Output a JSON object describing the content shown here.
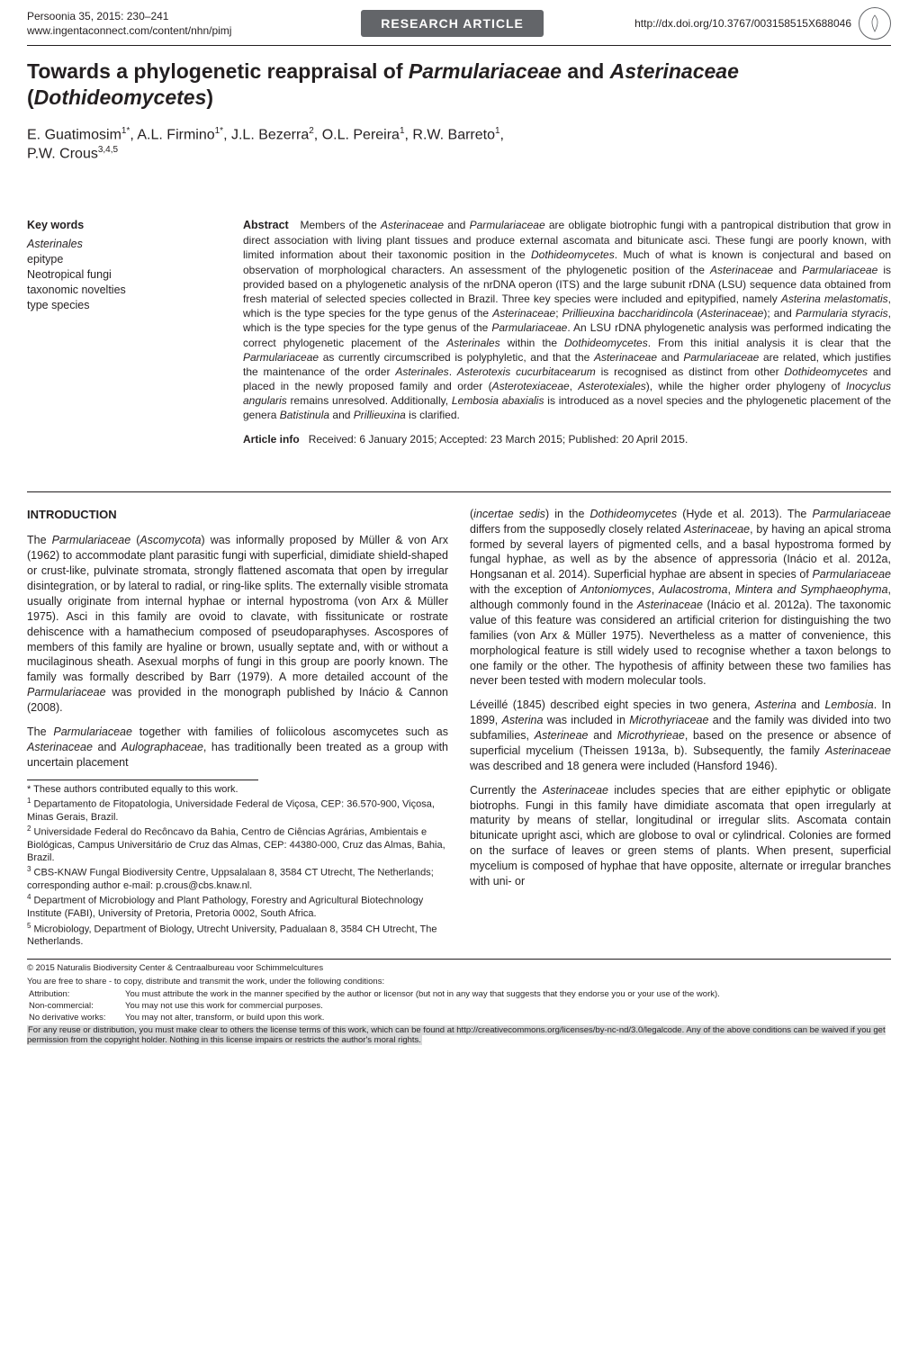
{
  "header": {
    "journal_line1": "Persoonia 35, 2015: 230–241",
    "journal_url": "www.ingentaconnect.com/content/nhn/pimj",
    "badge": "RESEARCH ARTICLE",
    "doi": "http://dx.doi.org/10.3767/003158515X688046"
  },
  "title_html": "Towards a phylogenetic reappraisal of <i>Parmulariaceae</i> and <i>Asterinaceae</i> (<i>Dothideomycetes</i>)",
  "authors_html": "E. Guatimosim<sup>1*</sup>, A.L. Firmino<sup>1*</sup>, J.L. Bezerra<sup>2</sup>, O.L. Pereira<sup>1</sup>, R.W. Barreto<sup>1</sup>,<br>P.W. Crous<sup>3,4,5</sup>",
  "keywords": {
    "heading": "Key words",
    "items": [
      {
        "text": "Asterinales",
        "italic": true
      },
      {
        "text": "epitype",
        "italic": false
      },
      {
        "text": "Neotropical fungi",
        "italic": false
      },
      {
        "text": "taxonomic novelties",
        "italic": false
      },
      {
        "text": "type species",
        "italic": false
      }
    ]
  },
  "abstract": {
    "heading": "Abstract",
    "text_html": "Members of the <i>Asterinaceae</i> and <i>Parmulariaceae</i> are obligate biotrophic fungi with a pantropical distribution that grow in direct association with living plant tissues and produce external ascomata and bitunicate asci. These fungi are poorly known, with limited information about their taxonomic position in the <i>Dothideomycetes</i>. Much of what is known is conjectural and based on observation of morphological characters. An assessment of the phylogenetic position of the <i>Asterinaceae</i> and <i>Parmulariaceae</i> is provided based on a phylogenetic analysis of the nrDNA operon (ITS) and the large subunit rDNA (LSU) sequence data obtained from fresh material of selected species collected in Brazil. Three key species were included and epitypified, namely <i>Asterina melastomatis</i>, which is the type species for the type genus of the <i>Asterinaceae</i>; <i>Prillieuxina baccharidincola</i> (<i>Asterinaceae</i>); and <i>Parmularia styracis</i>, which is the type species for the type genus of the <i>Parmulariaceae</i>. An LSU rDNA phylogenetic analysis was performed indicating the correct phylogenetic placement of the <i>Asterinales</i> within the <i>Dothideomycetes</i>. From this initial analysis it is clear that the <i>Parmulariaceae</i> as currently circumscribed is polyphyletic, and that the <i>Asterinaceae</i> and <i>Parmulariaceae</i> are related, which justifies the maintenance of the order <i>Asterinales</i>. <i>Asterotexis cucurbitacearum</i> is recognised as distinct from other <i>Dothideomycetes</i> and placed in the newly proposed family and order (<i>Asterotexiaceae</i>, <i>Asterotexiales</i>), while the higher order phylogeny of <i>Inocyclus angularis</i> remains unresolved. Additionally, <i>Lembosia abaxialis</i> is introduced as a novel species and the phylogenetic placement of the genera <i>Batistinula</i> and <i>Prillieuxina</i> is clarified."
  },
  "article_info": {
    "label": "Article info",
    "text": "Received: 6 January 2015; Accepted: 23 March 2015; Published: 20 April 2015."
  },
  "introduction_heading": "INTRODUCTION",
  "left_paragraphs": [
    "The <i>Parmulariaceae</i> (<i>Ascomycota</i>) was informally proposed by Müller & von Arx (1962) to accommodate plant parasitic fungi with superficial, dimidiate shield-shaped or crust-like, pulvinate stromata, strongly flattened ascomata that open by irregular disintegration, or by lateral to radial, or ring-like splits. The externally visible stromata usually originate from internal hyphae or internal hypostroma (von Arx & Müller 1975). Asci in this family are ovoid to clavate, with fissitunicate or rostrate dehiscence with a hamathecium composed of pseudoparaphyses. Ascospores of members of this family are hyaline or brown, usually septate and, with or without a mucilaginous sheath. Asexual morphs of fungi in this group are poorly known. The family was formally described by Barr (1979). A more detailed account of the <i>Parmulariaceae</i> was provided in the monograph published by Inácio & Cannon (2008).",
    "The <i>Parmulariaceae</i> together with families of foliicolous ascomycetes such as <i>Asterinaceae</i> and <i>Aulographaceae</i>, has traditionally been treated as a group with uncertain placement"
  ],
  "footnotes": [
    "* These authors contributed equally to this work.",
    "<sup>1</sup> Departamento de Fitopatologia, Universidade Federal de Viçosa, CEP: 36.570-900, Viçosa, Minas Gerais, Brazil.",
    "<sup>2</sup> Universidade Federal do Recôncavo da Bahia, Centro de Ciências Agrárias, Ambientais e Biológicas, Campus Universitário de Cruz das Almas, CEP: 44380-000, Cruz das Almas, Bahia, Brazil.",
    "<sup>3</sup> CBS-KNAW Fungal Biodiversity Centre, Uppsalalaan 8, 3584 CT Utrecht, The Netherlands; corresponding author e-mail: p.crous@cbs.knaw.nl.",
    "<sup>4</sup> Department of Microbiology and Plant Pathology, Forestry and Agricultural Biotechnology Institute (FABI), University of Pretoria, Pretoria 0002, South Africa.",
    "<sup>5</sup> Microbiology, Department of Biology, Utrecht University, Padualaan 8, 3584 CH Utrecht, The Netherlands."
  ],
  "right_paragraphs": [
    "(<i>incertae sedis</i>) in the <i>Dothideomycetes</i> (Hyde et al. 2013). The <i>Parmulariaceae</i> differs from the supposedly closely related <i>Asterinaceae</i>, by having an apical stroma formed by several layers of pigmented cells, and a basal hypostroma formed by fungal hyphae, as well as by the absence of appressoria (Inácio et al. 2012a, Hongsanan et al. 2014). Superficial hyphae are absent in species of <i>Parmulariaceae</i> with the exception of <i>Antoniomyces</i>, <i>Aulacostroma</i>, <i>Mintera and Symphaeophyma</i>, although commonly found in the <i>Asterinaceae</i> (Inácio et al. 2012a). The taxonomic value of this feature was considered an artificial criterion for distinguishing the two families (von Arx & Müller 1975). Nevertheless as a matter of convenience, this morphological feature is still widely used to recognise whether a taxon belongs to one family or the other. The hypothesis of affinity between these two families has never been tested with modern molecular tools.",
    "Léveillé (1845) described eight species in two genera, <i>Asterina</i> and <i>Lembosia</i>. In 1899, <i>Asterina</i> was included in <i>Microthyriaceae</i> and the family was divided into two subfamilies, <i>Asterineae</i> and <i>Microthyrieae</i>, based on the presence or absence of superficial mycelium (Theissen 1913a, b). Subsequently, the family <i>Asterinaceae</i> was described and 18 genera were included (Hansford 1946).",
    "Currently the <i>Asterinaceae</i> includes species that are either epiphytic or obligate biotrophs. Fungi in this family have dimidiate ascomata that open irregularly at maturity by means of stellar, longitudinal or irregular slits. Ascomata contain bitunicate upright asci, which are globose to oval or cylindrical. Colonies are formed on the surface of leaves or green stems of plants. When present, superficial mycelium is composed of hyphae that have opposite, alternate or irregular branches with uni- or"
  ],
  "license": {
    "copyright": "© 2015   Naturalis Biodiversity Center & Centraalbureau voor Schimmelcultures",
    "intro": "You are free to share - to copy, distribute and transmit the work, under the following conditions:",
    "rows": [
      {
        "label": "Attribution:",
        "text": "You must attribute the work in the manner specified by the author or licensor (but not in any way that suggests that they endorse you or your use of the work)."
      },
      {
        "label": "Non-commercial:",
        "text": "You may not use this work for commercial purposes."
      },
      {
        "label": "No derivative works:",
        "text": "You may not alter, transform, or build upon this work."
      }
    ],
    "tail": "For any reuse or distribution, you must make clear to others the license terms of this work, which can be found at http://creativecommons.org/licenses/by-nc-nd/3.0/legalcode. Any of the above conditions can be waived if you get permission from the copyright holder. Nothing in this license impairs or restricts the author's moral rights."
  }
}
